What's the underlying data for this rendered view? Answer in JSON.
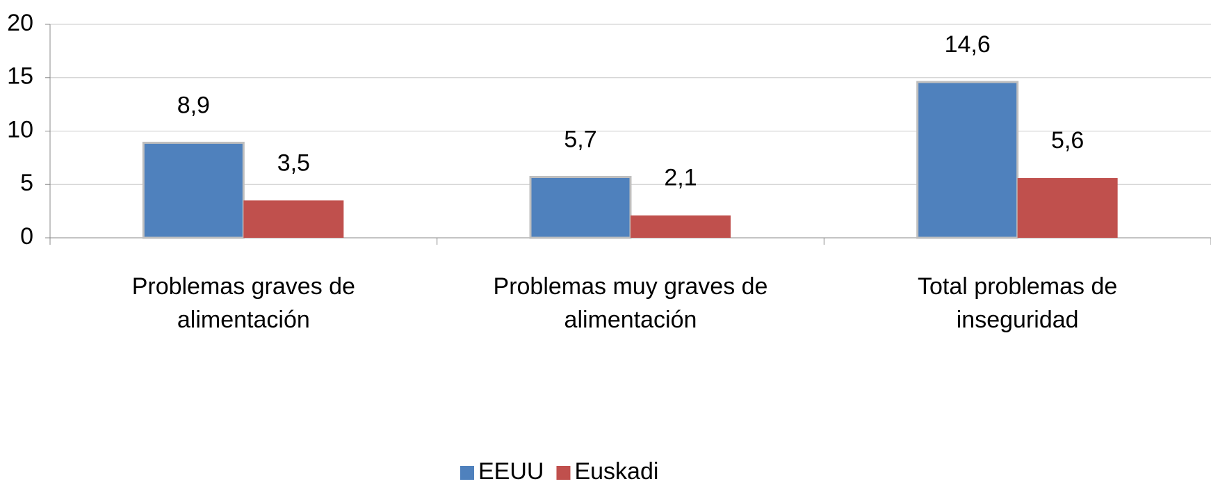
{
  "chart_data": {
    "type": "bar",
    "categories": [
      "Problemas graves de alimentación",
      "Problemas muy graves de alimentación",
      "Total problemas de inseguridad"
    ],
    "series": [
      {
        "name": "EEUU",
        "color": "#4f81bd",
        "values": [
          8.9,
          5.7,
          14.6
        ],
        "value_labels": [
          "8,9",
          "5,7",
          "14,6"
        ]
      },
      {
        "name": "Euskadi",
        "color": "#c0504d",
        "values": [
          3.5,
          2.1,
          5.6
        ],
        "value_labels": [
          "3,5",
          "2,1",
          "5,6"
        ]
      }
    ],
    "ylim": [
      0,
      20
    ],
    "yticks": [
      0,
      5,
      10,
      15,
      20
    ],
    "grid": true,
    "legend": "bottom"
  }
}
